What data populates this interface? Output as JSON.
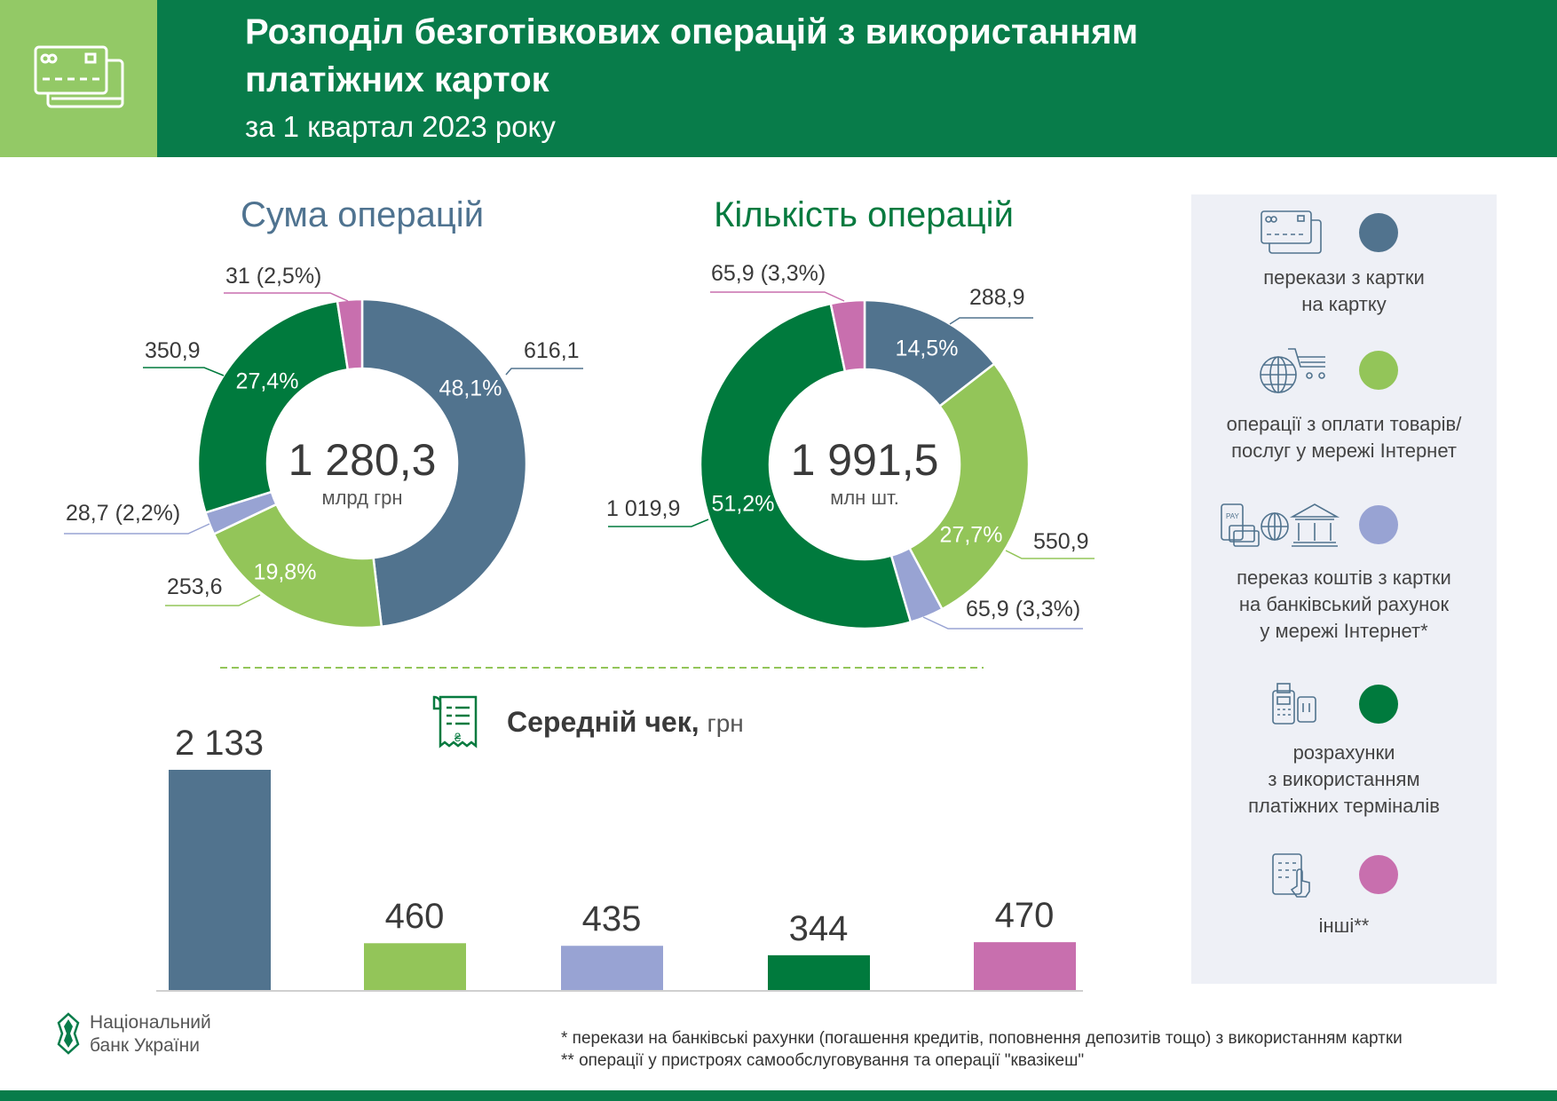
{
  "header": {
    "title_line1": "Розподіл безготівкових операцій з використанням",
    "title_line2": "платіжних карток",
    "subtitle": "за 1 квартал 2023 року",
    "icon": "credit-cards-icon"
  },
  "colors": {
    "header_green": "#087c4a",
    "header_light_green": "#93c966",
    "card_to_card": "#51738e",
    "internet_payments": "#93c559",
    "card_to_account": "#98a3d3",
    "terminals": "#007a3d",
    "other": "#c86fae"
  },
  "chart_data": [
    {
      "type": "pie",
      "donut": true,
      "title": "Сума операцій",
      "total": "1 280,3",
      "unit": "млрд грн",
      "values": [
        616.1,
        253.6,
        28.7,
        350.9,
        31
      ],
      "percents": [
        48.1,
        19.8,
        2.2,
        27.4,
        2.5
      ],
      "colors": [
        "#51738e",
        "#93c559",
        "#98a3d3",
        "#007a3d",
        "#c86fae"
      ],
      "value_labels": [
        "616,1",
        "253,6",
        "28,7 (2,2%)",
        "350,9",
        "31 (2,5%)"
      ],
      "pct_labels": [
        "48,1%",
        "19,8%",
        "",
        "27,4%",
        ""
      ]
    },
    {
      "type": "pie",
      "donut": true,
      "title": "Кількість операцій",
      "total": "1 991,5",
      "unit": "млн шт.",
      "values": [
        288.9,
        550.9,
        65.9,
        1019.9,
        65.9
      ],
      "percents": [
        14.5,
        27.7,
        3.3,
        51.2,
        3.3
      ],
      "colors": [
        "#51738e",
        "#93c559",
        "#98a3d3",
        "#007a3d",
        "#c86fae"
      ],
      "value_labels": [
        "288,9",
        "550,9",
        "65,9 (3,3%)",
        "1 019,9",
        "65,9 (3,3%)"
      ],
      "pct_labels": [
        "14,5%",
        "27,7%",
        "",
        "51,2%",
        ""
      ]
    },
    {
      "type": "bar",
      "title": "Середній чек,",
      "unit": "грн",
      "values": [
        2133,
        460,
        435,
        344,
        470
      ],
      "value_labels": [
        "2 133",
        "460",
        "435",
        "344",
        "470"
      ],
      "colors": [
        "#51738e",
        "#93c559",
        "#98a3d3",
        "#007a3d",
        "#c86fae"
      ],
      "ylim": [
        0,
        2133
      ]
    }
  ],
  "legend": {
    "items": [
      {
        "icon": "credit-cards-icon",
        "color": "#51738e",
        "lines": [
          "перекази з картки",
          "на картку"
        ]
      },
      {
        "icon": "globe-cart-icon",
        "color": "#93c559",
        "lines": [
          "операції з оплати товарів/",
          "послуг у мережі Інтернет"
        ]
      },
      {
        "icon": "phone-pay-bank-icon",
        "color": "#98a3d3",
        "lines": [
          "переказ коштів з картки",
          "на банківський рахунок",
          "у мережі Інтернет*"
        ]
      },
      {
        "icon": "payment-terminal-icon",
        "color": "#007a3d",
        "lines": [
          "розрахунки",
          "з використанням",
          "платіжних терміналів"
        ]
      },
      {
        "icon": "tablet-touch-icon",
        "color": "#c86fae",
        "lines": [
          "інші**"
        ]
      }
    ]
  },
  "footer": {
    "logo_line1": "Національний",
    "logo_line2": "банк України",
    "note1": "* перекази на банківські рахунки (погашення кредитів, поповнення депозитів тощо) з використанням картки",
    "note2": "** операції у пристроях самообслуговування та операції \"квазікеш\""
  }
}
